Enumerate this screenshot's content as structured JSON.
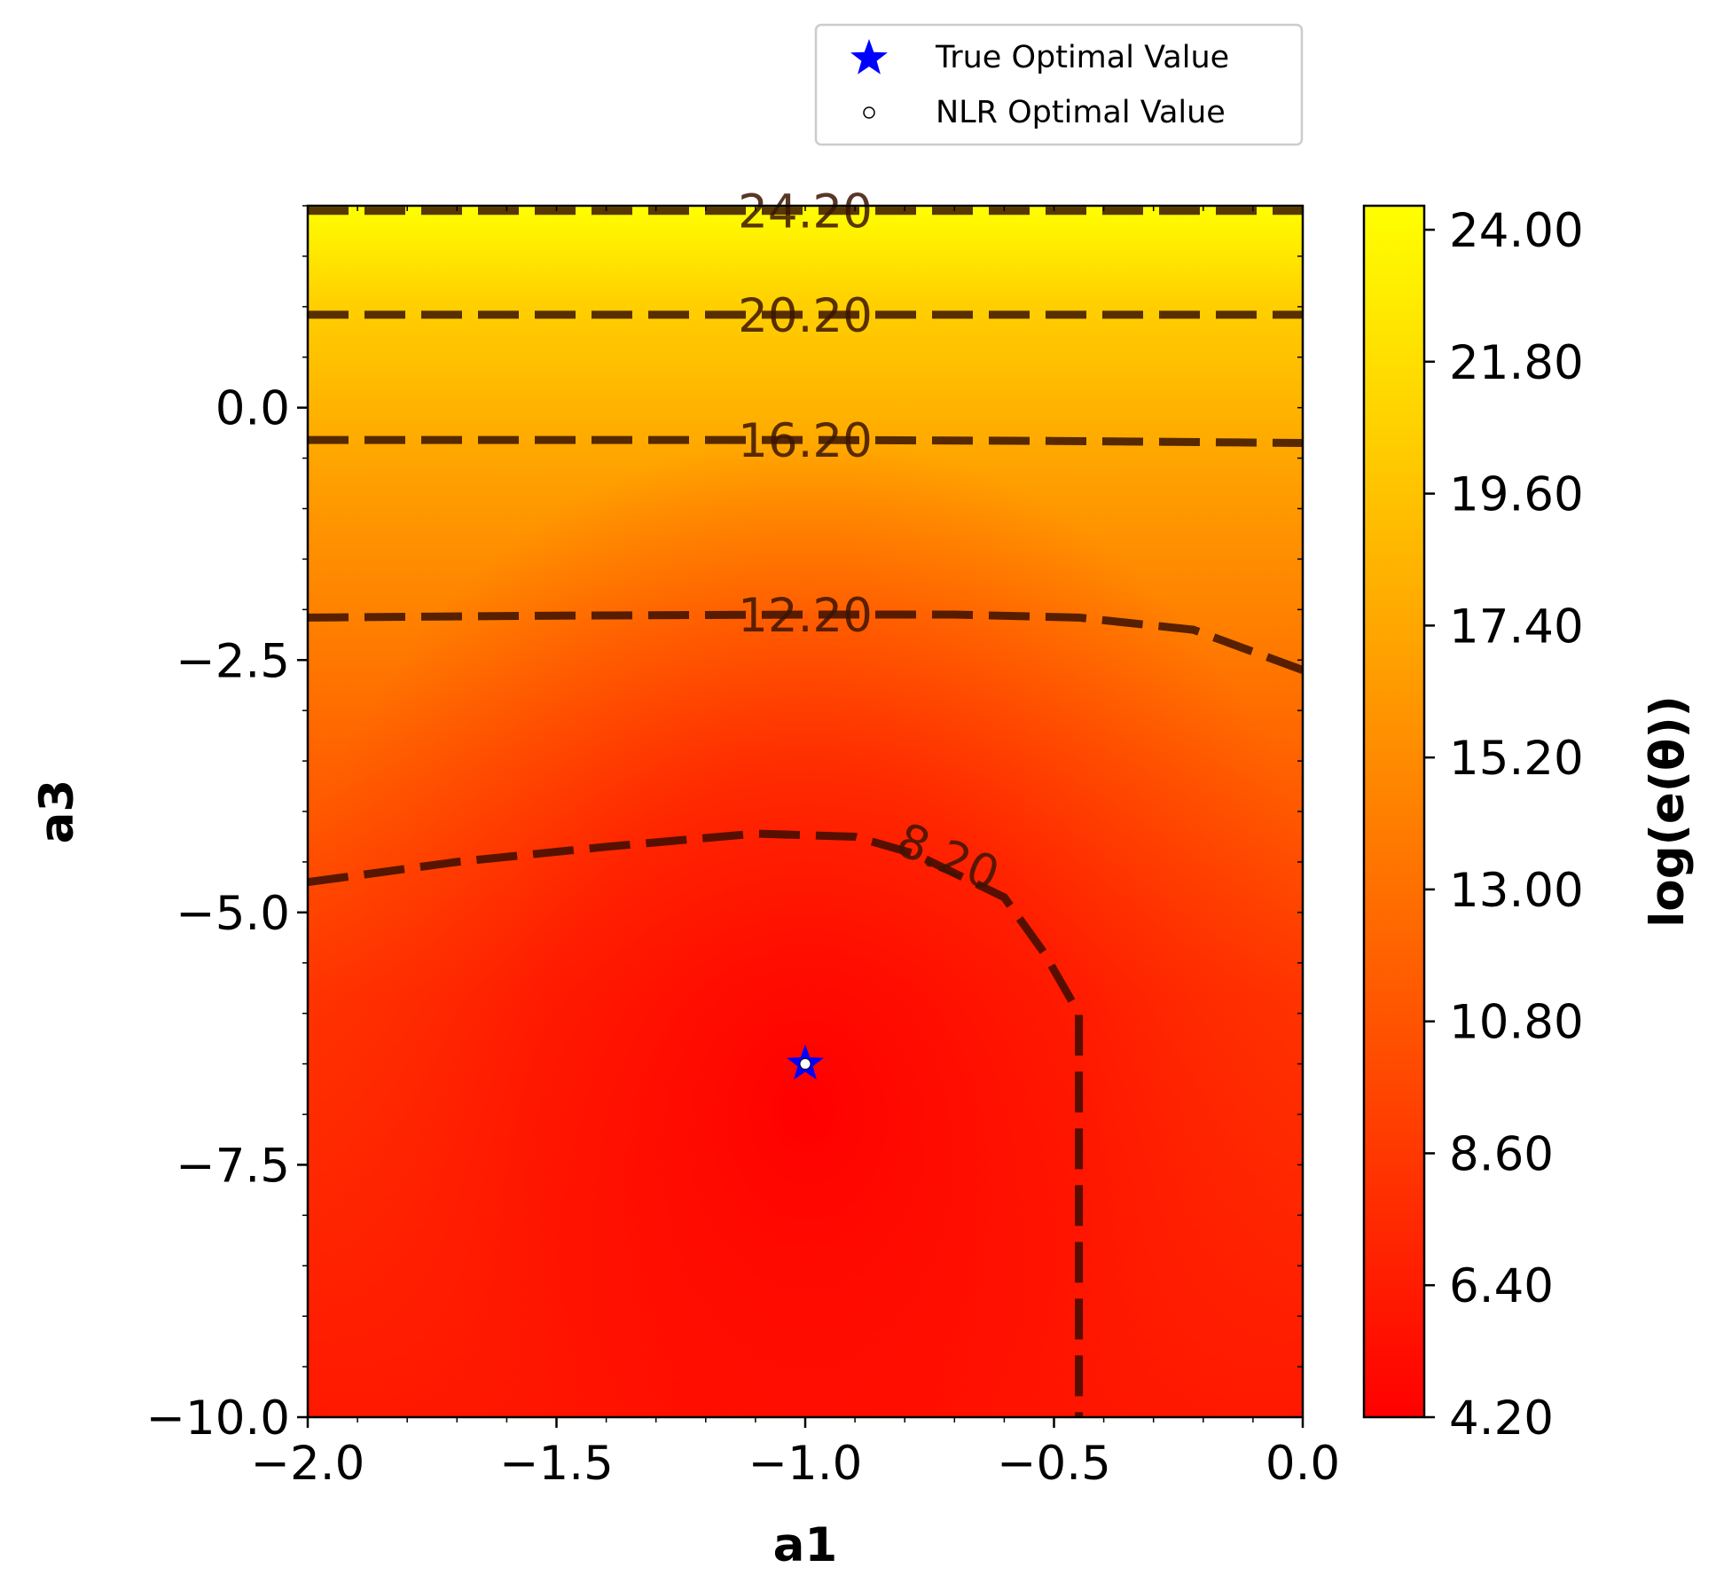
{
  "chart_data": {
    "type": "heatmap",
    "subtype": "contour",
    "xlabel": "a1",
    "ylabel": "a3",
    "xlim": [
      -2.0,
      0.0
    ],
    "ylim": [
      -10.0,
      2.0
    ],
    "x_ticks": [
      "−2.0",
      "−1.5",
      "−1.0",
      "−0.5",
      "0.0"
    ],
    "y_ticks": [
      "−10.0",
      "−7.5",
      "−5.0",
      "−2.5",
      "0.0"
    ],
    "colormap": [
      "#ff0000",
      "#ff8000",
      "#ffff00"
    ],
    "colorbar": {
      "label": "log(e(θ))",
      "range": [
        4.2,
        24.4
      ],
      "ticks": [
        "4.20",
        "6.40",
        "8.60",
        "10.80",
        "13.00",
        "15.20",
        "17.40",
        "19.60",
        "21.80",
        "24.00"
      ]
    },
    "contour_levels": [
      {
        "label": "8.20",
        "points": [
          [
            -2.0,
            -4.7
          ],
          [
            -1.7,
            -4.5
          ],
          [
            -1.4,
            -4.35
          ],
          [
            -1.1,
            -4.22
          ],
          [
            -0.9,
            -4.25
          ],
          [
            -0.78,
            -4.42
          ],
          [
            -0.6,
            -4.85
          ],
          [
            -0.52,
            -5.4
          ],
          [
            -0.45,
            -6.0
          ],
          [
            -0.45,
            -7.5
          ],
          [
            -0.45,
            -10.0
          ]
        ]
      },
      {
        "label": "12.20",
        "points": [
          [
            -2.0,
            -2.08
          ],
          [
            -1.5,
            -2.06
          ],
          [
            -1.0,
            -2.05
          ],
          [
            -0.7,
            -2.05
          ],
          [
            -0.45,
            -2.08
          ],
          [
            -0.22,
            -2.2
          ],
          [
            0.0,
            -2.6
          ]
        ]
      },
      {
        "label": "16.20",
        "points": [
          [
            -2.0,
            -0.32
          ],
          [
            -1.0,
            -0.32
          ],
          [
            -0.5,
            -0.33
          ],
          [
            0.0,
            -0.35
          ]
        ]
      },
      {
        "label": "20.20",
        "points": [
          [
            -2.0,
            0.92
          ],
          [
            0.0,
            0.92
          ]
        ]
      },
      {
        "label": "24.20",
        "points": [
          [
            -2.0,
            1.95
          ],
          [
            0.0,
            1.95
          ]
        ]
      }
    ],
    "true_optimum": {
      "a1": -1.0,
      "a3": -6.5
    },
    "nlr_optimum": {
      "a1": -1.0,
      "a3": -6.5
    },
    "legend": {
      "position": "top-right, above plot",
      "entries": [
        {
          "label": "True Optimal Value",
          "marker": "star",
          "color": "#0000ff"
        },
        {
          "label": "NLR Optimal Value",
          "marker": "circle",
          "color": "#ffffff"
        }
      ]
    }
  }
}
